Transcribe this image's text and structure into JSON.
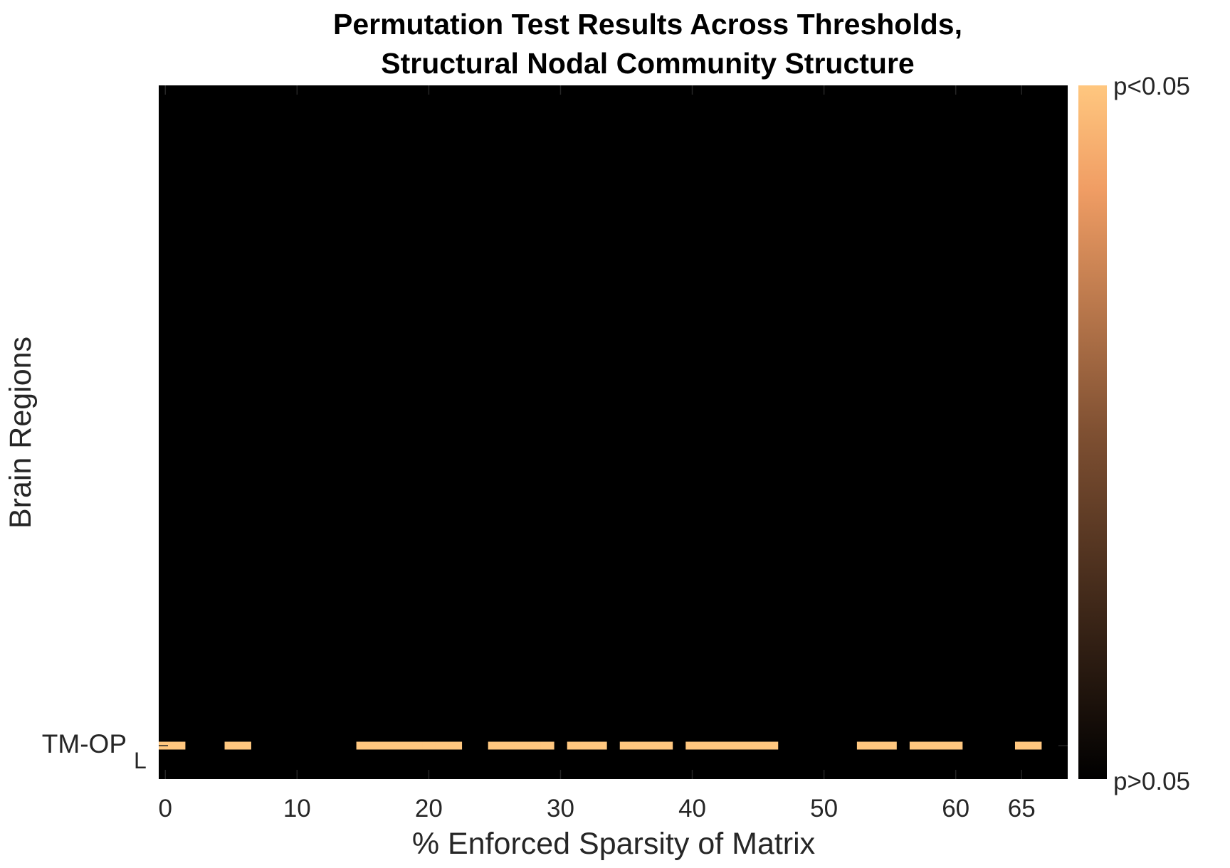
{
  "chart_data": {
    "type": "heatmap",
    "title_line1": "Permutation Test Results Across Thresholds,",
    "title_line2": "Structural Nodal Community Structure",
    "xlabel": "% Enforced Sparsity of Matrix",
    "ylabel": "Brain Regions",
    "xlim": [
      -0.5,
      68.5
    ],
    "x_ticks": [
      "0",
      "10",
      "20",
      "30",
      "40",
      "50",
      "60",
      "65"
    ],
    "x_tick_values": [
      0,
      10,
      20,
      30,
      40,
      50,
      60,
      65
    ],
    "y_tick_label": "TM-OP",
    "y_tick_subscript": "L",
    "background_color": "#000000",
    "colormap": "copper",
    "colorbar": {
      "top_label": "p<0.05",
      "bottom_label": "p>0.05",
      "color_low": "#000000",
      "color_high": "#ffc77f"
    },
    "series": [
      {
        "row": "TM-OP L",
        "significant_x": [
          0,
          1,
          5,
          6,
          15,
          16,
          17,
          18,
          19,
          20,
          21,
          22,
          25,
          26,
          27,
          28,
          29,
          31,
          32,
          33,
          35,
          36,
          37,
          38,
          40,
          41,
          42,
          43,
          44,
          45,
          46,
          53,
          54,
          55,
          57,
          58,
          59,
          60,
          65,
          66
        ]
      }
    ]
  }
}
